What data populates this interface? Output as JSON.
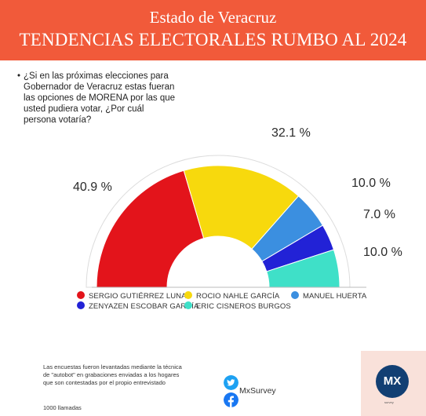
{
  "header": {
    "line1": "Estado de Veracruz",
    "line2": "TENDENCIAS ELECTORALES RUMBO AL 2024",
    "bg_color": "#f15a3a"
  },
  "question": "¿Si en las próximas elecciones para Gobernador de Veracruz estas fueran las opciones de MORENA por las que usted pudiera votar, ¿Por cuál persona  votaría?",
  "chart_data": {
    "type": "pie",
    "variant": "half-donut",
    "categories": [
      "SERGIO GUTIÉRREZ LUNA",
      "ROCIO NAHLE GARCÍA",
      "MANUEL HUERTA",
      "ZENYAZEN ESCOBAR GARCÍA",
      "ERIC CISNEROS BURGOS"
    ],
    "values": [
      40.9,
      32.1,
      10.0,
      7.0,
      10.0
    ],
    "labels": [
      "40.9 %",
      "32.1 %",
      "10.0 %",
      "7.0 %",
      "10.0 %"
    ],
    "colors": [
      "#e3141b",
      "#f7d90d",
      "#3b8fe0",
      "#2222d6",
      "#3fe0c8"
    ],
    "legend_position": "bottom"
  },
  "footnote": "Las encuestas fueron levantadas mediante la técnica de \"autobot\" en grabaciones enviadas a los hogares que son contestadas por el propio entrevistado",
  "calls": "1000 llamadas",
  "social": {
    "handle": "MxSurvey",
    "icons": [
      "twitter-icon",
      "facebook-icon"
    ]
  },
  "logo": {
    "text": "MX",
    "subtext": "survey"
  }
}
